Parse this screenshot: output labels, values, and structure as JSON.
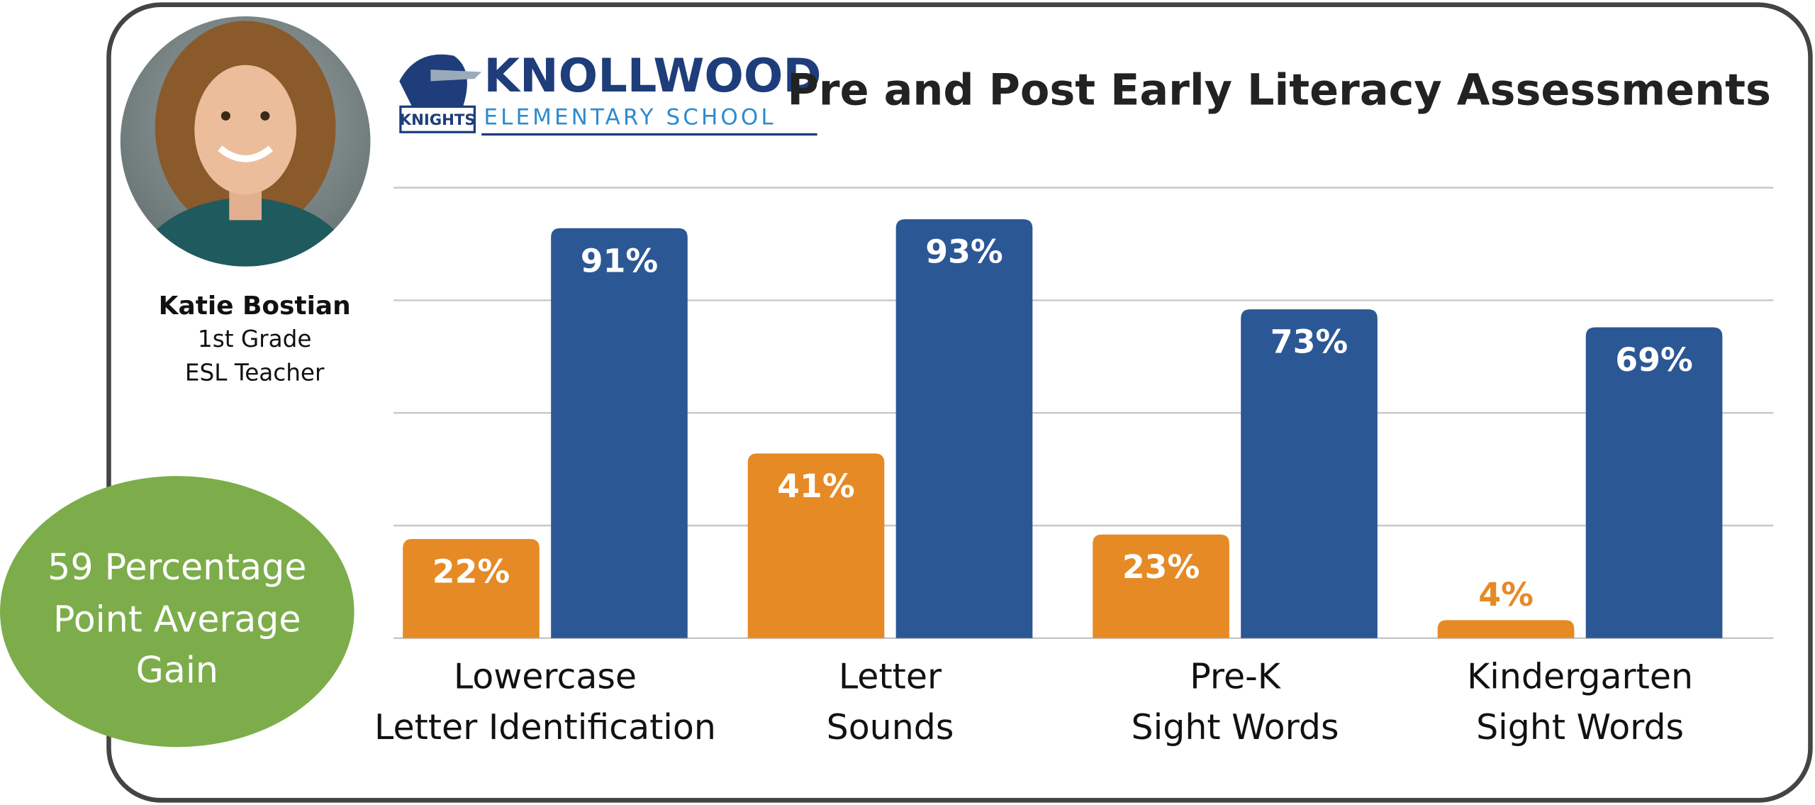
{
  "chart_data": {
    "type": "bar",
    "title": "Pre and Post Early Literacy Assessments",
    "categories": [
      [
        "Lowercase",
        "Letter Identification"
      ],
      [
        "Letter",
        "Sounds"
      ],
      [
        "Pre-K",
        "Sight Words"
      ],
      [
        "Kindergarten",
        "Sight Words"
      ]
    ],
    "series": [
      {
        "color": "#e68a25",
        "values": [
          22,
          41,
          23,
          4
        ],
        "value_labels": [
          "22%",
          "41%",
          "23%",
          "4%"
        ]
      },
      {
        "color": "#2c5795",
        "values": [
          91,
          93,
          73,
          69
        ],
        "value_labels": [
          "91%",
          "93%",
          "73%",
          "69%"
        ]
      }
    ],
    "ylim": [
      0,
      100
    ],
    "yticks": [
      0,
      25,
      50,
      75,
      100
    ],
    "grid": true
  },
  "teacher": {
    "name": "Katie Bostian",
    "lines": [
      "1st Grade",
      "ESL Teacher"
    ]
  },
  "badge": {
    "lines": [
      "59 Percentage",
      "Point Average",
      "Gain"
    ]
  },
  "logo": {
    "name": "KNOLLWOOD",
    "subtitle": "ELEMENTARY SCHOOL",
    "mascot": "KNIGHTS"
  }
}
